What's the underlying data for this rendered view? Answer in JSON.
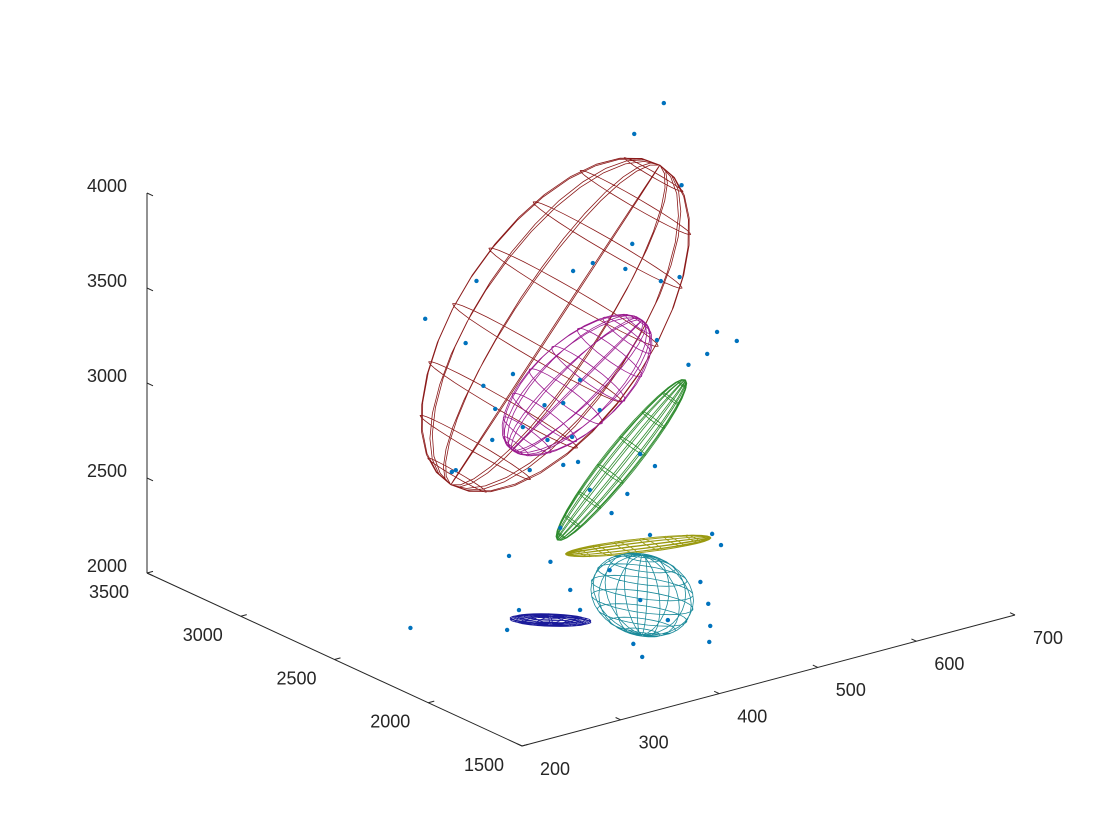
{
  "chart_data": {
    "type": "scatter3d",
    "xlim": [
      200,
      700
    ],
    "xticks": [
      200,
      300,
      400,
      500,
      600,
      700
    ],
    "ylim": [
      1500,
      3500
    ],
    "yticks": [
      1500,
      2000,
      2500,
      3000,
      3500
    ],
    "zlim": [
      2000,
      4000
    ],
    "zticks": [
      2000,
      2500,
      3000,
      3500,
      4000
    ],
    "points": {
      "color": "#0072bd",
      "x": [
        534,
        504,
        552,
        502,
        462,
        442,
        495,
        531,
        550,
        344,
        292,
        588,
        608,
        333,
        578,
        559,
        527,
        351,
        363,
        381,
        413,
        432,
        449,
        469,
        360,
        391,
        416,
        441,
        398,
        319,
        323,
        432,
        447,
        510,
        525,
        497,
        459,
        481,
        429,
        520,
        583,
        592,
        377,
        419,
        277,
        292,
        280,
        344,
        384,
        415,
        476,
        484,
        486,
        485,
        408,
        417,
        354,
        443
      ],
      "y": [
        2500,
        2500,
        2500,
        2500,
        2500,
        2500,
        2500,
        2500,
        2500,
        2500,
        2500,
        2500,
        2500,
        2500,
        2500,
        2500,
        2500,
        2500,
        2500,
        2500,
        2500,
        2500,
        2500,
        2500,
        2500,
        2500,
        2500,
        2500,
        2500,
        2500,
        2500,
        2500,
        2500,
        2500,
        2500,
        2500,
        2500,
        2500,
        2500,
        2500,
        2500,
        2500,
        2500,
        2500,
        2500,
        2000,
        2000,
        2000,
        2000,
        2000,
        2000,
        2000,
        2000,
        2000,
        2000,
        2000,
        2000,
        2000
      ],
      "z": [
        4468,
        4347,
        4011,
        3771,
        3725,
        3711,
        3649,
        3535,
        3530,
        3794,
        3666,
        3189,
        3114,
        3482,
        3087,
        3056,
        3230,
        3232,
        3094,
        3253,
        3045,
        3030,
        3128,
        2942,
        2935,
        2960,
        2858,
        2839,
        2724,
        2823,
        2827,
        2704,
        2699,
        2654,
        2570,
        2462,
        2535,
        2383,
        2377,
        2214,
        2133,
        2062,
        2301,
        2212,
        2060,
        2361,
        2273,
        2395,
        2444,
        2244,
        2255,
        2129,
        2010,
        1927,
        2023,
        1942,
        2276,
        2100
      ]
    },
    "ellipsoids": [
      {
        "color": "#8b1a1a",
        "center": [
          424,
          2500,
          3452
        ],
        "axes": [
          [
            66,
            0,
            -317
          ],
          [
            0,
            300,
            0
          ],
          [
            106,
            0,
            695
          ]
        ]
      },
      {
        "color": "#9b1b8f",
        "center": [
          446,
          2500,
          3105
        ],
        "axes": [
          [
            25,
            0,
            -166
          ],
          [
            0,
            150,
            0
          ],
          [
            66,
            0,
            251
          ]
        ]
      },
      {
        "color": "#2e8b2e",
        "center": [
          491,
          2500,
          2649
        ],
        "axes": [
          [
            11,
            0,
            -63
          ],
          [
            0,
            40,
            0
          ],
          [
            65,
            0,
            332
          ]
        ]
      },
      {
        "color": "#9a9a10",
        "center": [
          508,
          2500,
          2173
        ],
        "axes": [
          [
            0,
            0,
            15
          ],
          [
            0,
            60,
            0
          ],
          [
            73,
            0,
            -53
          ]
        ]
      },
      {
        "color": "#1a8a9a",
        "center": [
          417,
          2000,
          2268
        ],
        "axes": [
          [
            44,
            0,
            -60
          ],
          [
            0,
            150,
            0
          ],
          [
            0,
            0,
            210
          ]
        ]
      },
      {
        "color": "#1a1a9a",
        "center": [
          324,
          2000,
          2264
        ],
        "axes": [
          [
            40,
            0,
            -55
          ],
          [
            0,
            60,
            0
          ],
          [
            0,
            0,
            20
          ]
        ]
      }
    ]
  }
}
